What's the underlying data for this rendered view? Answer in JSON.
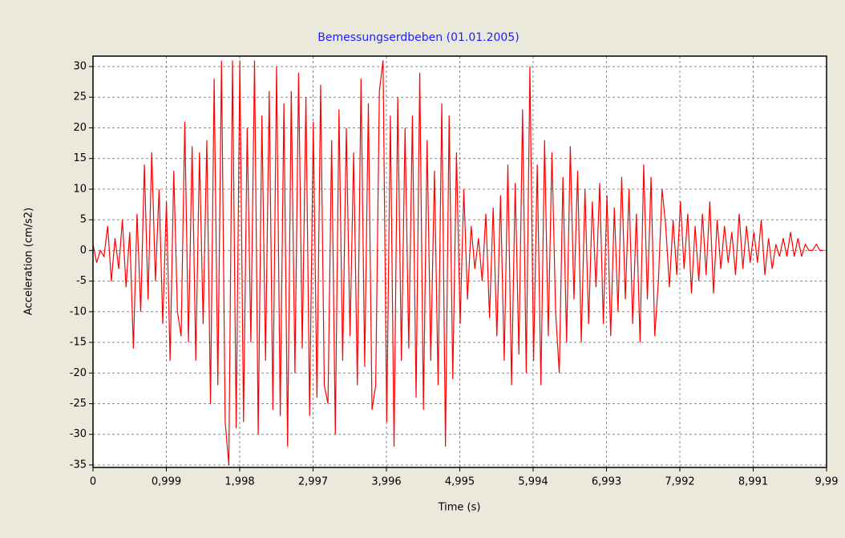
{
  "chart_data": {
    "type": "line",
    "title": "Bemessungserdbeben (01.01.2005)",
    "x_label": "Time (s)",
    "y_label": "Acceleration (cm/s2)",
    "color": "#ff0000",
    "grid": true,
    "xlim": [
      0,
      9.99
    ],
    "ylim": [
      -35.4,
      31.7
    ],
    "xticks": [
      {
        "value": 0,
        "label": "0"
      },
      {
        "value": 0.999,
        "label": "0,999"
      },
      {
        "value": 1.998,
        "label": "1,998"
      },
      {
        "value": 2.997,
        "label": "2,997"
      },
      {
        "value": 3.996,
        "label": "3,996"
      },
      {
        "value": 4.995,
        "label": "4,995"
      },
      {
        "value": 5.994,
        "label": "5,994"
      },
      {
        "value": 6.993,
        "label": "6,993"
      },
      {
        "value": 7.992,
        "label": "7,992"
      },
      {
        "value": 8.991,
        "label": "8,991"
      },
      {
        "value": 9.99,
        "label": "9,99"
      }
    ],
    "yticks": [
      30,
      25,
      20,
      15,
      10,
      5,
      0,
      -5,
      -10,
      -15,
      -20,
      -25,
      -30,
      -35
    ],
    "x": [
      0,
      0.05,
      0.1,
      0.15,
      0.2,
      0.25,
      0.3,
      0.35,
      0.4,
      0.45,
      0.5,
      0.55,
      0.6,
      0.65,
      0.7,
      0.75,
      0.8,
      0.85,
      0.9,
      0.95,
      1,
      1.05,
      1.1,
      1.15,
      1.2,
      1.25,
      1.3,
      1.35,
      1.4,
      1.45,
      1.5,
      1.55,
      1.6,
      1.65,
      1.7,
      1.75,
      1.8,
      1.85,
      1.9,
      1.95,
      2,
      2.05,
      2.1,
      2.15,
      2.2,
      2.25,
      2.3,
      2.35,
      2.4,
      2.45,
      2.5,
      2.55,
      2.6,
      2.65,
      2.7,
      2.75,
      2.8,
      2.85,
      2.9,
      2.95,
      3,
      3.05,
      3.1,
      3.15,
      3.2,
      3.25,
      3.3,
      3.35,
      3.4,
      3.45,
      3.5,
      3.55,
      3.6,
      3.65,
      3.7,
      3.75,
      3.8,
      3.85,
      3.9,
      3.95,
      4,
      4.05,
      4.1,
      4.15,
      4.2,
      4.25,
      4.3,
      4.35,
      4.4,
      4.45,
      4.5,
      4.55,
      4.6,
      4.65,
      4.7,
      4.75,
      4.8,
      4.85,
      4.9,
      4.95,
      5,
      5.05,
      5.1,
      5.15,
      5.2,
      5.25,
      5.3,
      5.35,
      5.4,
      5.45,
      5.5,
      5.55,
      5.6,
      5.65,
      5.7,
      5.75,
      5.8,
      5.85,
      5.9,
      5.95,
      6,
      6.05,
      6.1,
      6.15,
      6.2,
      6.25,
      6.3,
      6.35,
      6.4,
      6.45,
      6.5,
      6.55,
      6.6,
      6.65,
      6.7,
      6.75,
      6.8,
      6.85,
      6.9,
      6.95,
      7,
      7.05,
      7.1,
      7.15,
      7.2,
      7.25,
      7.3,
      7.35,
      7.4,
      7.45,
      7.5,
      7.55,
      7.6,
      7.65,
      7.7,
      7.75,
      7.8,
      7.85,
      7.9,
      7.95,
      8,
      8.05,
      8.1,
      8.15,
      8.2,
      8.25,
      8.3,
      8.35,
      8.4,
      8.45,
      8.5,
      8.55,
      8.6,
      8.65,
      8.7,
      8.75,
      8.8,
      8.85,
      8.9,
      8.95,
      9,
      9.05,
      9.1,
      9.15,
      9.2,
      9.25,
      9.3,
      9.35,
      9.4,
      9.45,
      9.5,
      9.55,
      9.6,
      9.65,
      9.7,
      9.75,
      9.8,
      9.85,
      9.9,
      9.95
    ],
    "values": [
      1,
      -2,
      0,
      -1,
      4,
      -5,
      2,
      -3,
      5,
      -6,
      3,
      -16,
      6,
      -10,
      14,
      -8,
      16,
      -5,
      10,
      -12,
      8,
      -18,
      13,
      -10,
      -14,
      21,
      -15,
      17,
      -18,
      16,
      -12,
      18,
      -25,
      28,
      -22,
      31,
      -28,
      -35,
      31,
      -29,
      31,
      -28,
      20,
      -15,
      31,
      -30,
      22,
      -18,
      26,
      -26,
      30,
      -27,
      24,
      -32,
      26,
      -20,
      29,
      -16,
      25,
      -27,
      21,
      -24,
      27,
      -22,
      -25,
      18,
      -30,
      23,
      -18,
      20,
      -14,
      16,
      -22,
      28,
      -19,
      24,
      -26,
      -22,
      26,
      31,
      -28,
      22,
      -32,
      25,
      -18,
      20,
      -16,
      22,
      -24,
      29,
      -26,
      18,
      -18,
      13,
      -22,
      24,
      -32,
      22,
      -21,
      16,
      -12,
      10,
      -8,
      4,
      -3,
      2,
      -5,
      6,
      -11,
      7,
      -14,
      9,
      -18,
      14,
      -22,
      11,
      -17,
      23,
      -20,
      30,
      -18,
      14,
      -22,
      18,
      -14,
      16,
      -10,
      -20,
      12,
      -15,
      17,
      -8,
      13,
      -15,
      10,
      -12,
      8,
      -6,
      11,
      -12,
      9,
      -14,
      7,
      -10,
      12,
      -8,
      10,
      -12,
      6,
      -15,
      14,
      -8,
      12,
      -14,
      -5,
      10,
      4,
      -6,
      5,
      -4,
      8,
      -3,
      6,
      -7,
      4,
      -5,
      6,
      -4,
      8,
      -7,
      5,
      -3,
      4,
      -2,
      3,
      -4,
      6,
      -3,
      4,
      -2,
      3,
      -2,
      5,
      -4,
      2,
      -3,
      1,
      -1,
      2,
      -1,
      3,
      -1,
      2,
      -1,
      1,
      0,
      0,
      1,
      0,
      0
    ]
  }
}
